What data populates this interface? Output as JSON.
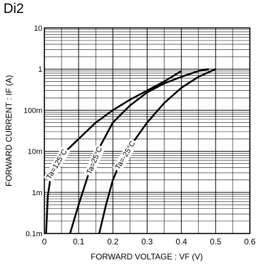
{
  "panel_title": "Di2",
  "chart_data": {
    "type": "line",
    "title": "",
    "xlabel": "FORWARD  VOLTAGE : VF (V)",
    "ylabel": "FORWARD  CURRENT : IF (A)",
    "x_scale": "linear",
    "y_scale": "log",
    "xlim": [
      0,
      0.6
    ],
    "ylim": [
      0.0001,
      10
    ],
    "grid": true,
    "x_ticks": [
      "0",
      "0.1",
      "0.2",
      "0.3",
      "0.4",
      "0.5",
      "0.6"
    ],
    "y_ticks": [
      {
        "label": "0.1m",
        "value": 0.0001
      },
      {
        "label": "1m",
        "value": 0.001
      },
      {
        "label": "10m",
        "value": 0.01
      },
      {
        "label": "100m",
        "value": 0.1
      },
      {
        "label": "1",
        "value": 1
      },
      {
        "label": "10",
        "value": 10
      }
    ],
    "series": [
      {
        "name": "Ta=125°C",
        "points": [
          [
            0.005,
            0.0001
          ],
          [
            0.01,
            0.0008
          ],
          [
            0.02,
            0.003
          ],
          [
            0.05,
            0.008
          ],
          [
            0.1,
            0.02
          ],
          [
            0.15,
            0.05
          ],
          [
            0.2,
            0.1
          ],
          [
            0.25,
            0.18
          ],
          [
            0.3,
            0.3
          ],
          [
            0.35,
            0.5
          ],
          [
            0.4,
            0.9
          ]
        ]
      },
      {
        "name": "Ta=25°C",
        "points": [
          [
            0.075,
            0.0001
          ],
          [
            0.1,
            0.0005
          ],
          [
            0.13,
            0.003
          ],
          [
            0.16,
            0.012
          ],
          [
            0.2,
            0.05
          ],
          [
            0.25,
            0.13
          ],
          [
            0.3,
            0.27
          ],
          [
            0.35,
            0.45
          ],
          [
            0.4,
            0.65
          ],
          [
            0.45,
            0.9
          ],
          [
            0.48,
            1.0
          ]
        ]
      },
      {
        "name": "Ta=-25°C",
        "points": [
          [
            0.16,
            0.0001
          ],
          [
            0.18,
            0.0005
          ],
          [
            0.2,
            0.002
          ],
          [
            0.22,
            0.005
          ],
          [
            0.25,
            0.013
          ],
          [
            0.3,
            0.05
          ],
          [
            0.35,
            0.15
          ],
          [
            0.4,
            0.35
          ],
          [
            0.45,
            0.65
          ],
          [
            0.5,
            1.0
          ]
        ]
      }
    ]
  }
}
